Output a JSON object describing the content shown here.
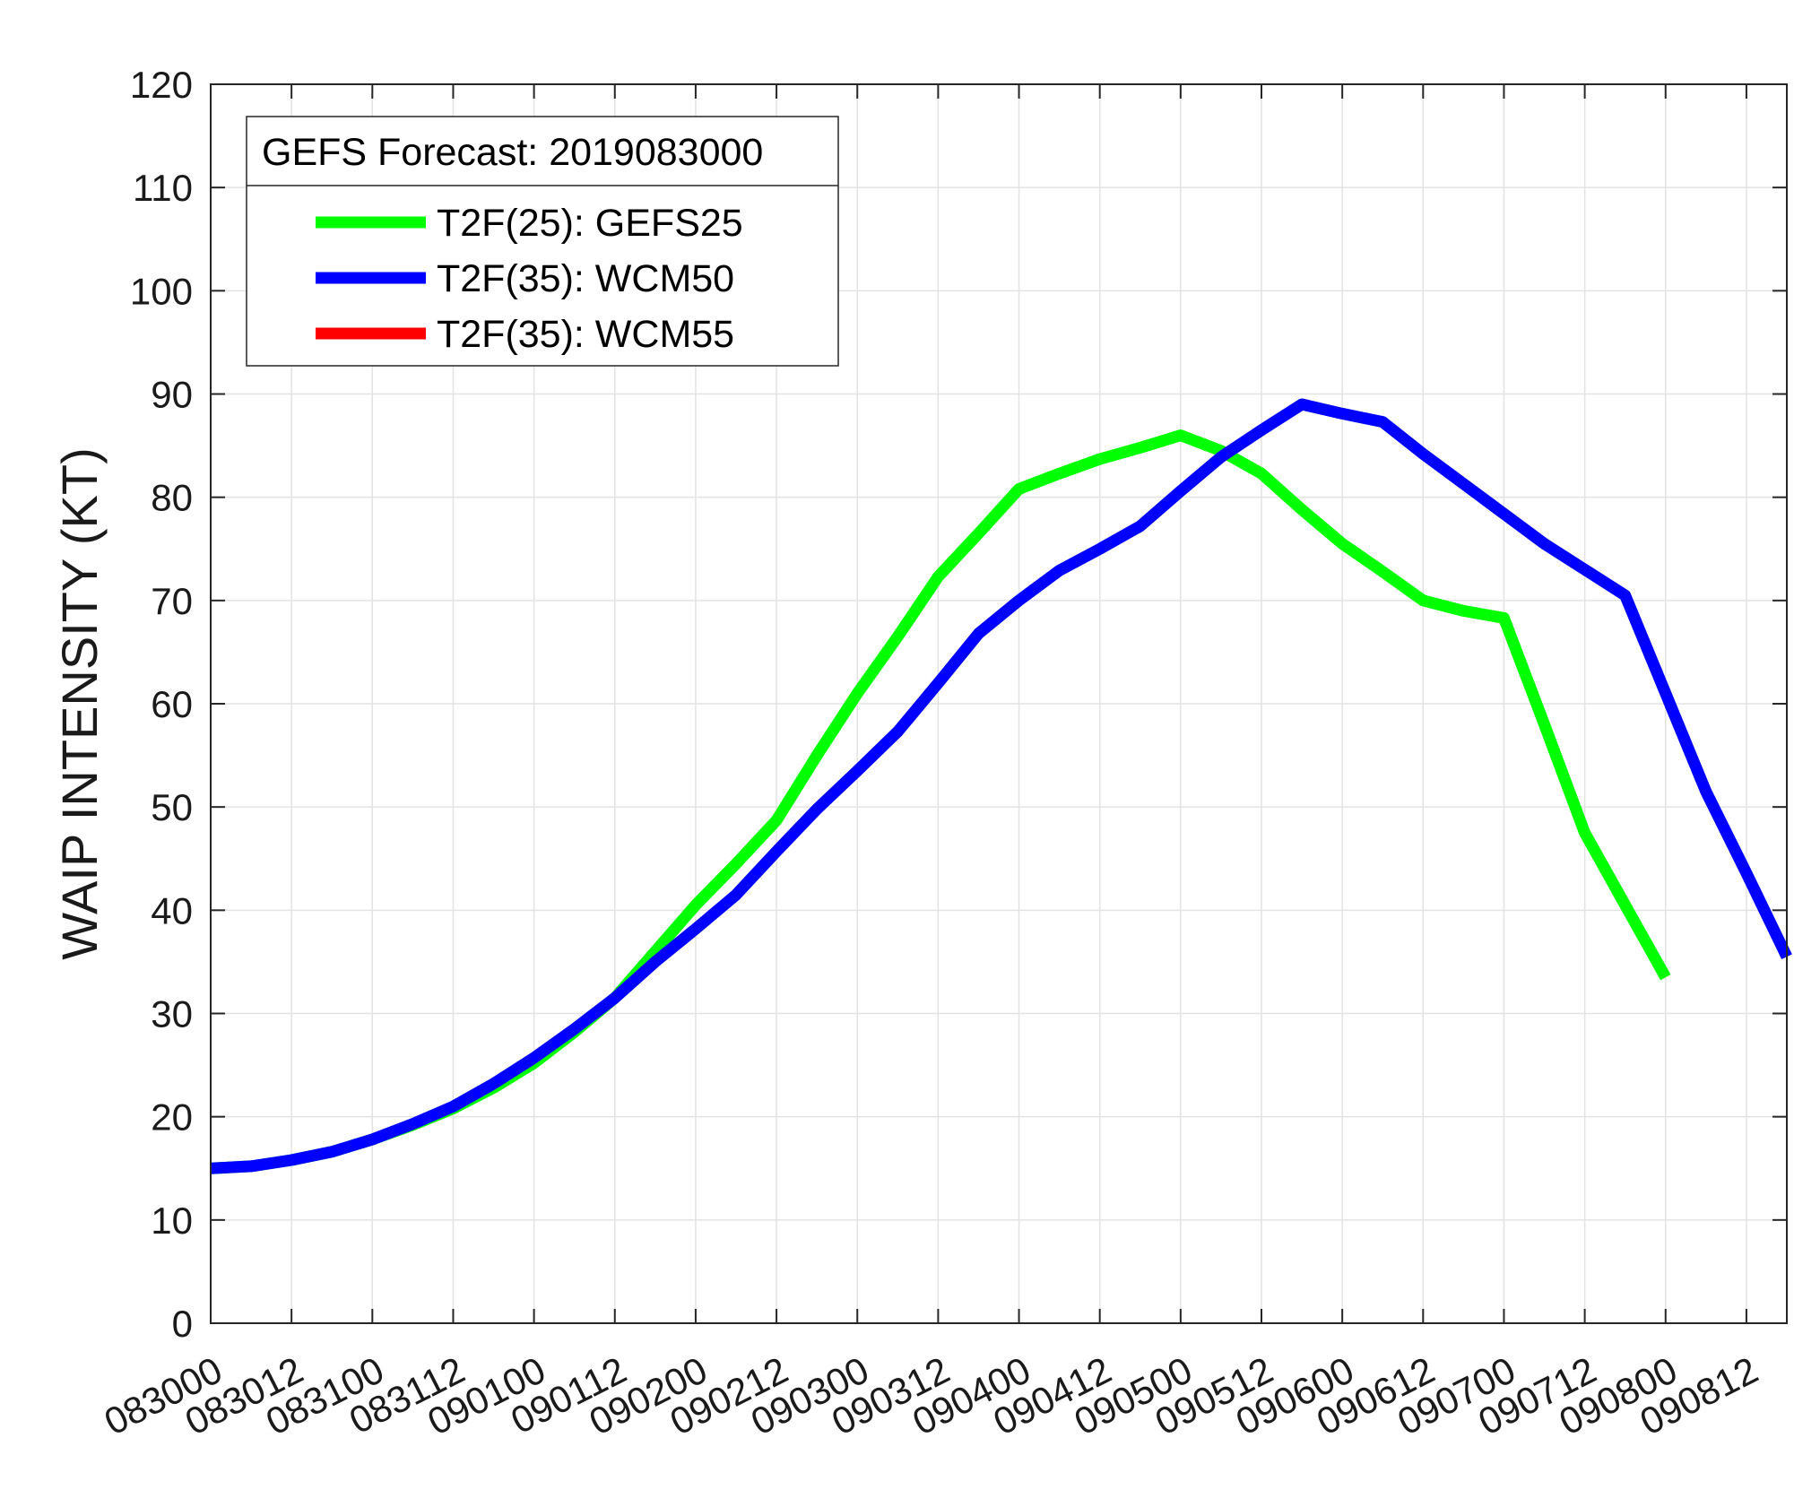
{
  "chart_data": {
    "type": "line",
    "ylabel": "WAIP INTENSITY (KT)",
    "xlabel": "",
    "ylim": [
      0,
      120
    ],
    "yticks": [
      0,
      10,
      20,
      30,
      40,
      50,
      60,
      70,
      80,
      90,
      100,
      110,
      120
    ],
    "xlim": [
      0,
      234
    ],
    "x_tick_hours": [
      0,
      12,
      24,
      36,
      48,
      60,
      72,
      84,
      96,
      108,
      120,
      132,
      144,
      156,
      168,
      180,
      192,
      204,
      216,
      228
    ],
    "x_tick_labels": [
      "083000",
      "083012",
      "083100",
      "083112",
      "090100",
      "090112",
      "090200",
      "090212",
      "090300",
      "090312",
      "090400",
      "090412",
      "090500",
      "090512",
      "090600",
      "090612",
      "090700",
      "090712",
      "090800",
      "090812"
    ],
    "grid": true,
    "legend_title": "GEFS Forecast: 2019083000",
    "legend_position": "top-left",
    "series": [
      {
        "name": "T2F(25): GEFS25",
        "color": "#00ff00",
        "x": [
          0,
          6,
          12,
          18,
          24,
          30,
          36,
          42,
          48,
          54,
          60,
          66,
          72,
          78,
          84,
          90,
          96,
          102,
          108,
          114,
          120,
          126,
          132,
          138,
          144,
          150,
          156,
          162,
          168,
          174,
          180,
          186,
          192,
          198,
          204,
          210,
          216
        ],
        "y": [
          15,
          15.2,
          15.8,
          16.6,
          17.8,
          19.2,
          20.8,
          22.8,
          25.2,
          28.2,
          31.5,
          36,
          40.5,
          44.5,
          48.7,
          55,
          61,
          66.5,
          72.3,
          76.5,
          80.8,
          82.3,
          83.7,
          84.8,
          86,
          84.5,
          82.3,
          78.8,
          75.5,
          72.8,
          70,
          69,
          68.3,
          58,
          47.5,
          40.5,
          33.5
        ]
      },
      {
        "name": "T2F(35): WCM50",
        "color": "#0000ff",
        "x": [
          0,
          6,
          12,
          18,
          24,
          30,
          36,
          42,
          48,
          54,
          60,
          66,
          72,
          78,
          84,
          90,
          96,
          102,
          108,
          114,
          120,
          126,
          132,
          138,
          144,
          150,
          156,
          162,
          168,
          174,
          180,
          186,
          192,
          198,
          204,
          210,
          216,
          222,
          228,
          234
        ],
        "y": [
          15,
          15.2,
          15.8,
          16.6,
          17.8,
          19.3,
          21,
          23.2,
          25.7,
          28.5,
          31.5,
          35,
          38.2,
          41.5,
          45.7,
          49.8,
          53.5,
          57.3,
          62,
          66.8,
          70,
          72.9,
          75,
          77.2,
          80.6,
          83.9,
          86.5,
          89,
          88.1,
          87.3,
          84.2,
          81.3,
          78.4,
          75.5,
          73,
          70.5,
          61,
          51.5,
          43.6,
          35.5
        ]
      },
      {
        "name": "T2F(35): WCM55",
        "color": "#ff0000",
        "x": [],
        "y": []
      }
    ]
  }
}
